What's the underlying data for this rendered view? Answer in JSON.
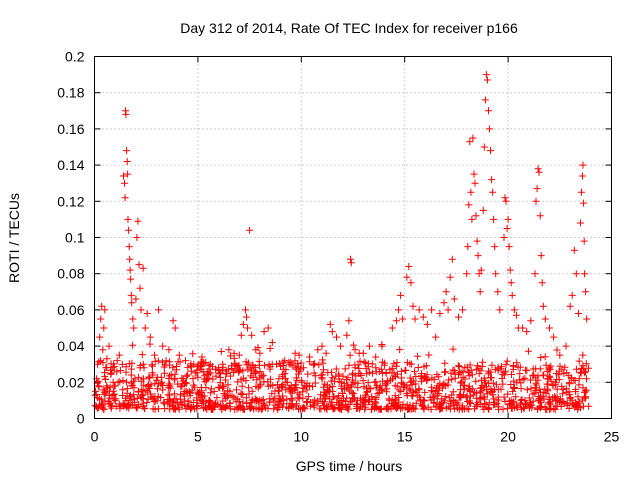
{
  "chart_data": {
    "type": "scatter",
    "title": "Day 312 of 2014, Rate Of TEC Index for receiver p166",
    "xlabel": "GPS time / hours",
    "ylabel": "ROTI / TECUs",
    "xlim": [
      0,
      25
    ],
    "ylim": [
      0,
      0.2
    ],
    "grid": true,
    "marker": "+",
    "color": "#ff0000",
    "x_ticks": [
      0,
      5,
      10,
      15,
      20,
      25
    ],
    "x_tick_labels": [
      "0",
      "5",
      "10",
      "15",
      "20",
      "25"
    ],
    "y_ticks": [
      0,
      0.02,
      0.04,
      0.06,
      0.08,
      0.1,
      0.12,
      0.14,
      0.16,
      0.18,
      0.2
    ],
    "y_tick_labels": [
      "0",
      "0.02",
      "0.04",
      "0.06",
      "0.08",
      "0.1",
      "0.12",
      "0.14",
      "0.16",
      "0.18",
      "0.2"
    ],
    "series": [
      {
        "name": "ROTI",
        "points": [
          [
            0.05,
            0.015
          ],
          [
            0.1,
            0.022
          ],
          [
            0.15,
            0.03
          ],
          [
            0.2,
            0.018
          ],
          [
            0.25,
            0.045
          ],
          [
            0.3,
            0.055
          ],
          [
            0.35,
            0.062
          ],
          [
            0.4,
            0.038
          ],
          [
            0.45,
            0.05
          ],
          [
            0.5,
            0.06
          ],
          [
            0.55,
            0.028
          ],
          [
            0.6,
            0.033
          ],
          [
            0.7,
            0.04
          ],
          [
            0.8,
            0.025
          ],
          [
            0.9,
            0.02
          ],
          [
            1.0,
            0.018
          ],
          [
            1.1,
            0.032
          ],
          [
            1.2,
            0.035
          ],
          [
            1.4,
            0.134
          ],
          [
            1.45,
            0.13
          ],
          [
            1.48,
            0.122
          ],
          [
            1.5,
            0.17
          ],
          [
            1.52,
            0.168
          ],
          [
            1.55,
            0.148
          ],
          [
            1.58,
            0.142
          ],
          [
            1.6,
            0.135
          ],
          [
            1.62,
            0.11
          ],
          [
            1.65,
            0.104
          ],
          [
            1.68,
            0.095
          ],
          [
            1.7,
            0.088
          ],
          [
            1.72,
            0.082
          ],
          [
            1.75,
            0.077
          ],
          [
            1.78,
            0.068
          ],
          [
            1.8,
            0.064
          ],
          [
            1.85,
            0.055
          ],
          [
            1.9,
            0.05
          ],
          [
            2.0,
            0.066
          ],
          [
            2.05,
            0.1
          ],
          [
            2.1,
            0.109
          ],
          [
            2.15,
            0.085
          ],
          [
            2.2,
            0.072
          ],
          [
            2.25,
            0.06
          ],
          [
            2.35,
            0.083
          ],
          [
            2.45,
            0.05
          ],
          [
            2.55,
            0.058
          ],
          [
            2.7,
            0.045
          ],
          [
            2.9,
            0.035
          ],
          [
            3.1,
            0.06
          ],
          [
            3.3,
            0.04
          ],
          [
            3.6,
            0.038
          ],
          [
            3.8,
            0.054
          ],
          [
            3.9,
            0.05
          ],
          [
            4.1,
            0.035
          ],
          [
            4.4,
            0.032
          ],
          [
            4.8,
            0.03
          ],
          [
            5.2,
            0.034
          ],
          [
            5.6,
            0.03
          ],
          [
            6.0,
            0.028
          ],
          [
            6.2,
            0.03
          ],
          [
            6.5,
            0.038
          ],
          [
            6.8,
            0.03
          ],
          [
            7.0,
            0.035
          ],
          [
            7.1,
            0.046
          ],
          [
            7.2,
            0.052
          ],
          [
            7.3,
            0.06
          ],
          [
            7.35,
            0.056
          ],
          [
            7.4,
            0.05
          ],
          [
            7.5,
            0.104
          ],
          [
            7.6,
            0.046
          ],
          [
            7.8,
            0.038
          ],
          [
            8.0,
            0.036
          ],
          [
            8.2,
            0.048
          ],
          [
            8.4,
            0.05
          ],
          [
            8.6,
            0.042
          ],
          [
            8.8,
            0.03
          ],
          [
            9.2,
            0.032
          ],
          [
            9.5,
            0.03
          ],
          [
            9.7,
            0.036
          ],
          [
            9.9,
            0.035
          ],
          [
            10.1,
            0.028
          ],
          [
            10.4,
            0.034
          ],
          [
            10.6,
            0.03
          ],
          [
            10.8,
            0.038
          ],
          [
            11.0,
            0.04
          ],
          [
            11.2,
            0.036
          ],
          [
            11.4,
            0.052
          ],
          [
            11.5,
            0.048
          ],
          [
            11.7,
            0.045
          ],
          [
            11.9,
            0.04
          ],
          [
            12.2,
            0.046
          ],
          [
            12.3,
            0.054
          ],
          [
            12.38,
            0.088
          ],
          [
            12.42,
            0.086
          ],
          [
            12.6,
            0.038
          ],
          [
            12.8,
            0.036
          ],
          [
            13.0,
            0.036
          ],
          [
            13.3,
            0.04
          ],
          [
            13.6,
            0.034
          ],
          [
            13.9,
            0.04
          ],
          [
            14.4,
            0.05
          ],
          [
            14.6,
            0.054
          ],
          [
            14.7,
            0.06
          ],
          [
            14.8,
            0.068
          ],
          [
            14.9,
            0.055
          ],
          [
            15.1,
            0.078
          ],
          [
            15.2,
            0.084
          ],
          [
            15.3,
            0.075
          ],
          [
            15.4,
            0.062
          ],
          [
            15.5,
            0.055
          ],
          [
            15.7,
            0.06
          ],
          [
            15.9,
            0.056
          ],
          [
            16.1,
            0.052
          ],
          [
            16.3,
            0.06
          ],
          [
            16.5,
            0.045
          ],
          [
            16.7,
            0.058
          ],
          [
            16.9,
            0.064
          ],
          [
            17.0,
            0.07
          ],
          [
            17.1,
            0.06
          ],
          [
            17.2,
            0.078
          ],
          [
            17.3,
            0.088
          ],
          [
            17.4,
            0.066
          ],
          [
            17.6,
            0.056
          ],
          [
            17.8,
            0.06
          ],
          [
            18.0,
            0.08
          ],
          [
            18.05,
            0.095
          ],
          [
            18.1,
            0.118
          ],
          [
            18.15,
            0.153
          ],
          [
            18.2,
            0.125
          ],
          [
            18.25,
            0.11
          ],
          [
            18.3,
            0.155
          ],
          [
            18.35,
            0.135
          ],
          [
            18.4,
            0.13
          ],
          [
            18.45,
            0.112
          ],
          [
            18.5,
            0.098
          ],
          [
            18.55,
            0.09
          ],
          [
            18.6,
            0.08
          ],
          [
            18.65,
            0.07
          ],
          [
            18.7,
            0.082
          ],
          [
            18.8,
            0.115
          ],
          [
            18.85,
            0.15
          ],
          [
            18.9,
            0.176
          ],
          [
            18.95,
            0.19
          ],
          [
            19.0,
            0.187
          ],
          [
            19.05,
            0.17
          ],
          [
            19.1,
            0.16
          ],
          [
            19.15,
            0.148
          ],
          [
            19.2,
            0.132
          ],
          [
            19.25,
            0.125
          ],
          [
            19.3,
            0.11
          ],
          [
            19.35,
            0.095
          ],
          [
            19.4,
            0.08
          ],
          [
            19.5,
            0.07
          ],
          [
            19.6,
            0.06
          ],
          [
            19.8,
            0.1
          ],
          [
            19.85,
            0.122
          ],
          [
            19.9,
            0.12
          ],
          [
            19.95,
            0.105
          ],
          [
            20.0,
            0.11
          ],
          [
            20.05,
            0.095
          ],
          [
            20.1,
            0.082
          ],
          [
            20.15,
            0.075
          ],
          [
            20.2,
            0.068
          ],
          [
            20.3,
            0.06
          ],
          [
            20.4,
            0.057
          ],
          [
            20.5,
            0.05
          ],
          [
            20.7,
            0.05
          ],
          [
            20.9,
            0.048
          ],
          [
            21.1,
            0.054
          ],
          [
            21.3,
            0.08
          ],
          [
            21.35,
            0.12
          ],
          [
            21.4,
            0.127
          ],
          [
            21.45,
            0.138
          ],
          [
            21.5,
            0.136
          ],
          [
            21.55,
            0.112
          ],
          [
            21.6,
            0.09
          ],
          [
            21.65,
            0.075
          ],
          [
            21.7,
            0.062
          ],
          [
            21.8,
            0.055
          ],
          [
            22.0,
            0.05
          ],
          [
            22.2,
            0.045
          ],
          [
            22.5,
            0.035
          ],
          [
            22.8,
            0.04
          ],
          [
            23.0,
            0.062
          ],
          [
            23.1,
            0.068
          ],
          [
            23.2,
            0.093
          ],
          [
            23.3,
            0.08
          ],
          [
            23.4,
            0.058
          ],
          [
            23.5,
            0.108
          ],
          [
            23.55,
            0.125
          ],
          [
            23.6,
            0.134
          ],
          [
            23.62,
            0.14
          ],
          [
            23.65,
            0.119
          ],
          [
            23.68,
            0.098
          ],
          [
            23.7,
            0.08
          ],
          [
            23.75,
            0.07
          ],
          [
            23.8,
            0.055
          ]
        ],
        "band": {
          "x_range": [
            0,
            23.9
          ],
          "y_min": 0.005,
          "y_max": 0.032,
          "density": "dense"
        }
      }
    ]
  }
}
